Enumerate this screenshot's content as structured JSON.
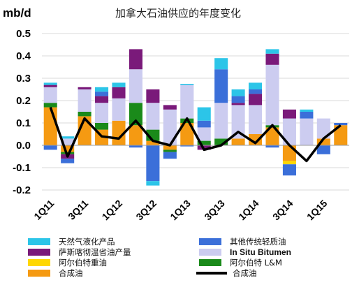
{
  "chart_data": {
    "type": "bar",
    "title": "加拿大石油供应的年度变化",
    "ylabel": "mb/d",
    "xlabel": "",
    "ylim": [
      -0.2,
      0.5
    ],
    "yticks": [
      "0.5",
      "0.4",
      "0.3",
      "0.2",
      "0.1",
      "0.0",
      "-0.1",
      "-0.2"
    ],
    "ytick_values": [
      0.5,
      0.4,
      0.3,
      0.2,
      0.1,
      0.0,
      -0.1,
      -0.2
    ],
    "categories": [
      "1Q11",
      "2Q11",
      "3Q11",
      "4Q11",
      "1Q12",
      "2Q12",
      "3Q12",
      "4Q12",
      "1Q13",
      "2Q13",
      "3Q13",
      "4Q13",
      "1Q14",
      "2Q14",
      "3Q14",
      "4Q14",
      "1Q15",
      "2Q15"
    ],
    "xtick_labels": [
      "1Q11",
      "3Q11",
      "1Q12",
      "3Q12",
      "1Q13",
      "3Q13",
      "1Q14",
      "3Q14",
      "1Q15"
    ],
    "xtick_indices": [
      0,
      2,
      4,
      6,
      8,
      10,
      12,
      14,
      16
    ],
    "grid": true,
    "legend_position": "bottom",
    "series": [
      {
        "name": "合成油",
        "key": "syn",
        "color": "#f59a12",
        "values": [
          0.17,
          -0.03,
          0.13,
          0.07,
          0.11,
          0.09,
          0.02,
          -0.02,
          0.1,
          0.0,
          0.0,
          0.03,
          0.05,
          0.08,
          -0.07,
          0.0,
          0.03,
          0.09
        ]
      },
      {
        "name": "阿尔伯特重油",
        "key": "heavy",
        "color": "#ffd700",
        "values": [
          0.0,
          0.0,
          0.0,
          0.0,
          0.0,
          0.0,
          0.0,
          0.0,
          0.0,
          0.0,
          0.0,
          0.0,
          0.0,
          0.0,
          -0.015,
          0.0,
          0.0,
          0.0
        ]
      },
      {
        "name": "阿尔伯特 L&M",
        "key": "lm",
        "color": "#1a8a1a",
        "values": [
          0.02,
          -0.01,
          0.02,
          0.03,
          0.0,
          0.1,
          0.05,
          -0.01,
          0.02,
          0.02,
          0.03,
          0.0,
          0.0,
          0.01,
          0.0,
          0.0,
          0.0,
          0.0
        ]
      },
      {
        "name": "In Situ Bitumen",
        "key": "insitu",
        "color": "#ccccf0",
        "values": [
          0.07,
          0.03,
          0.1,
          0.09,
          0.1,
          0.15,
          0.12,
          0.16,
          0.15,
          0.06,
          0.16,
          0.15,
          0.13,
          0.27,
          0.12,
          0.12,
          0.09,
          0.0
        ]
      },
      {
        "name": "萨斯喀彻温省油产量",
        "key": "sask",
        "color": "#7a1a7a",
        "values": [
          0.01,
          -0.02,
          0.01,
          0.03,
          0.05,
          0.09,
          0.06,
          0.02,
          0.0,
          -0.02,
          0.0,
          0.01,
          0.05,
          0.05,
          0.04,
          0.0,
          0.0,
          0.0
        ]
      },
      {
        "name": "其他传统轻质油",
        "key": "other",
        "color": "#3b6fd9",
        "values": [
          -0.02,
          -0.02,
          0.0,
          0.02,
          0.0,
          -0.01,
          -0.16,
          -0.03,
          -0.005,
          0.03,
          0.15,
          0.03,
          0.02,
          -0.01,
          -0.05,
          0.03,
          -0.04,
          0.01
        ]
      },
      {
        "name": "天然气液化产品",
        "key": "ngl",
        "color": "#2cc5e8",
        "values": [
          0.01,
          0.01,
          0.0,
          0.02,
          0.02,
          0.0,
          -0.02,
          0.0,
          0.005,
          0.06,
          0.05,
          0.03,
          0.03,
          0.02,
          0.0,
          0.01,
          0.0,
          0.0
        ]
      }
    ],
    "line": {
      "name": "合成油",
      "color": "#000000",
      "values": [
        0.17,
        -0.05,
        0.12,
        0.04,
        0.03,
        0.11,
        0.02,
        0.0,
        0.12,
        -0.02,
        0.0,
        0.06,
        0.01,
        0.09,
        0.0,
        -0.07,
        0.03,
        0.09
      ]
    },
    "legend": {
      "items": [
        {
          "label": "天然气液化产品",
          "series": "ngl",
          "type": "box"
        },
        {
          "label": "其他传统轻质油",
          "series": "other",
          "type": "box"
        },
        {
          "label": "萨斯喀彻温省油产量",
          "series": "sask",
          "type": "box"
        },
        {
          "label": "In Situ Bitumen",
          "series": "insitu",
          "type": "box"
        },
        {
          "label": "阿尔伯特重油",
          "series": "heavy",
          "type": "box"
        },
        {
          "label": "阿尔伯特 L&M",
          "series": "lm",
          "type": "box"
        },
        {
          "label": "合成油",
          "series": "syn",
          "type": "box"
        },
        {
          "label": "合成油",
          "series": "line",
          "type": "line"
        }
      ]
    }
  }
}
